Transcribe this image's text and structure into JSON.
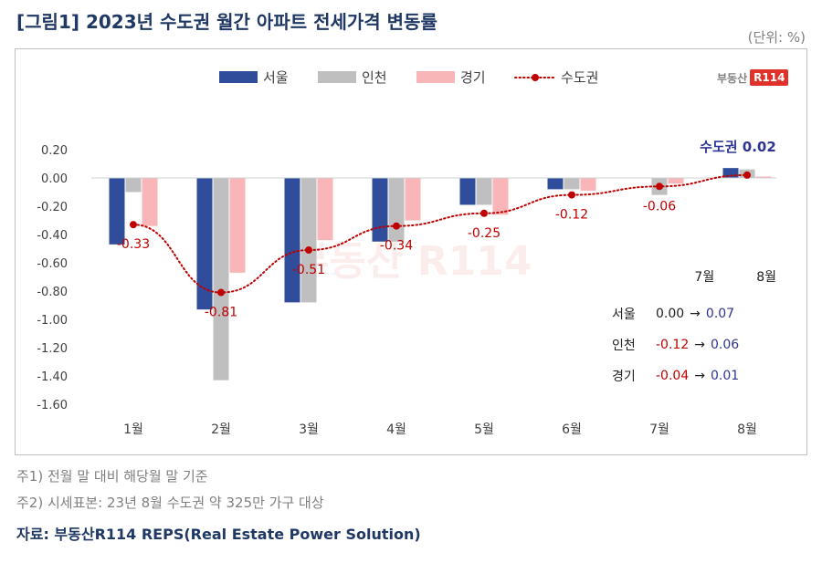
{
  "title": "[그림1] 2023년 수도권 월간 아파트 전세가격 변동률",
  "unit": "(단위: %)",
  "logo": {
    "text": "부동산",
    "box": "R114"
  },
  "watermark": "부동산 R114",
  "colors": {
    "seoul": "#2f4d9a",
    "incheon": "#bfbfbf",
    "gyeonggi": "#f8b6b8",
    "capital": "#c00000",
    "highlight": "#2f3592"
  },
  "chart_data": {
    "type": "bar",
    "categories": [
      "1월",
      "2월",
      "3월",
      "4월",
      "5월",
      "6월",
      "7월",
      "8월"
    ],
    "series": [
      {
        "name": "서울",
        "values": [
          -0.47,
          -0.93,
          -0.88,
          -0.45,
          -0.19,
          -0.08,
          0.0,
          0.07
        ]
      },
      {
        "name": "인천",
        "values": [
          -0.1,
          -1.43,
          -0.88,
          -0.45,
          -0.19,
          -0.08,
          -0.12,
          0.06
        ]
      },
      {
        "name": "경기",
        "values": [
          -0.34,
          -0.67,
          -0.44,
          -0.3,
          -0.26,
          -0.09,
          -0.04,
          0.01
        ]
      }
    ],
    "line": {
      "name": "수도권",
      "values": [
        -0.33,
        -0.81,
        -0.51,
        -0.34,
        -0.25,
        -0.12,
        -0.06,
        0.02
      ]
    },
    "point_labels": [
      "-0.33",
      "-0.81",
      "-0.51",
      "-0.34",
      "-0.25",
      "-0.12",
      "-0.06",
      "0.02"
    ],
    "last_point_label": "수도권 0.02",
    "ylim": [
      -1.6,
      0.2
    ],
    "yticks": [
      "0.20",
      "0.00",
      "-0.20",
      "-0.40",
      "-0.60",
      "-0.80",
      "-1.00",
      "-1.20",
      "-1.40",
      "-1.60"
    ],
    "ytick_values": [
      0.2,
      0.0,
      -0.2,
      -0.4,
      -0.6,
      -0.8,
      -1.0,
      -1.2,
      -1.4,
      -1.6
    ],
    "grid": false,
    "legend": "top-center"
  },
  "summary": {
    "headers": [
      "7월",
      "8월"
    ],
    "arrow": "→",
    "rows": [
      {
        "label": "서울",
        "jul": "0.00",
        "aug": "0.07"
      },
      {
        "label": "인천",
        "jul": "-0.12",
        "aug": "0.06"
      },
      {
        "label": "경기",
        "jul": "-0.04",
        "aug": "0.01"
      }
    ]
  },
  "notes": [
    "주1) 전월 말 대비 해당월 말 기준",
    "주2) 시세표본: 23년 8월 수도권 약 325만 가구 대상"
  ],
  "source": "자료: 부동산R114 REPS(Real Estate Power Solution)"
}
